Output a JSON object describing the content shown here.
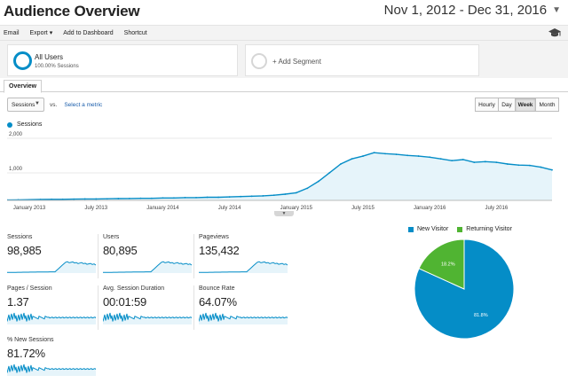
{
  "header": {
    "title": "Audience Overview",
    "date_range": "Nov 1, 2012 - Dec 31, 2016"
  },
  "toolbar": {
    "email": "Email",
    "export": "Export",
    "add_to_dashboard": "Add to Dashboard",
    "shortcut": "Shortcut",
    "export_caret": "▾"
  },
  "segments": {
    "all_users_title": "All Users",
    "all_users_sub": "100.00% Sessions",
    "add_segment": "+ Add Segment"
  },
  "tabs": {
    "overview": "Overview"
  },
  "metric_picker": {
    "selected": "Sessions",
    "vs": "vs.",
    "select_metric": "Select a metric"
  },
  "intervals": [
    {
      "label": "Hourly",
      "active": false
    },
    {
      "label": "Day",
      "active": false
    },
    {
      "label": "Week",
      "active": true
    },
    {
      "label": "Month",
      "active": false
    }
  ],
  "chart_legend": "Sessions",
  "colors": {
    "accent": "#058dc7",
    "chart_fill": "#e6f4fa",
    "returning": "#50b432"
  },
  "chart_data": {
    "type": "area",
    "series": [
      {
        "name": "Sessions",
        "x": [
          "2012-11",
          "2012-12",
          "2013-01",
          "2013-02",
          "2013-03",
          "2013-04",
          "2013-05",
          "2013-06",
          "2013-07",
          "2013-08",
          "2013-09",
          "2013-10",
          "2013-11",
          "2013-12",
          "2014-01",
          "2014-02",
          "2014-03",
          "2014-04",
          "2014-05",
          "2014-06",
          "2014-07",
          "2014-08",
          "2014-09",
          "2014-10",
          "2014-11",
          "2014-12",
          "2015-01",
          "2015-02",
          "2015-03",
          "2015-04",
          "2015-05",
          "2015-06",
          "2015-07",
          "2015-08",
          "2015-09",
          "2015-10",
          "2015-11",
          "2015-12",
          "2016-01",
          "2016-02",
          "2016-03",
          "2016-04",
          "2016-05",
          "2016-06",
          "2016-07",
          "2016-08",
          "2016-09",
          "2016-10",
          "2016-11",
          "2016-12"
        ],
        "values": [
          10,
          15,
          20,
          25,
          30,
          30,
          35,
          40,
          40,
          45,
          50,
          55,
          60,
          60,
          70,
          70,
          80,
          80,
          90,
          90,
          100,
          110,
          120,
          130,
          150,
          180,
          220,
          350,
          550,
          800,
          1050,
          1200,
          1280,
          1380,
          1350,
          1330,
          1300,
          1280,
          1250,
          1200,
          1150,
          1180,
          1100,
          1120,
          1100,
          1050,
          1020,
          1010,
          960,
          880
        ]
      }
    ],
    "xlabel": "",
    "ylabel": "",
    "x_ticks": [
      "January 2013",
      "July 2013",
      "January 2014",
      "July 2014",
      "January 2015",
      "July 2015",
      "January 2016",
      "July 2016"
    ],
    "x_tick_values": [
      "2013-01",
      "2013-07",
      "2014-01",
      "2014-07",
      "2015-01",
      "2015-07",
      "2016-01",
      "2016-07"
    ],
    "y_ticks": [
      "2,000",
      "1,000"
    ],
    "y_tick_values": [
      2000,
      1000
    ],
    "ylim": [
      0,
      2000
    ],
    "legend_position": "top-left",
    "grid": true
  },
  "scorecards": [
    {
      "label": "Sessions",
      "value": "98,985",
      "spark": "trend"
    },
    {
      "label": "Users",
      "value": "80,895",
      "spark": "trend"
    },
    {
      "label": "Pageviews",
      "value": "135,432",
      "spark": "trend"
    },
    {
      "label": "Pages / Session",
      "value": "1.37",
      "spark": "noisy"
    },
    {
      "label": "Avg. Session Duration",
      "value": "00:01:59",
      "spark": "noisy"
    },
    {
      "label": "Bounce Rate",
      "value": "64.07%",
      "spark": "noisy"
    },
    {
      "label": "% New Sessions",
      "value": "81.72%",
      "spark": "noisy"
    }
  ],
  "pie": {
    "legend": [
      {
        "label": "New Visitor",
        "color": "#058dc7",
        "value": 81.8
      },
      {
        "label": "Returning Visitor",
        "color": "#50b432",
        "value": 18.2
      }
    ],
    "labels": [
      "81.8%",
      "18.2%"
    ]
  }
}
